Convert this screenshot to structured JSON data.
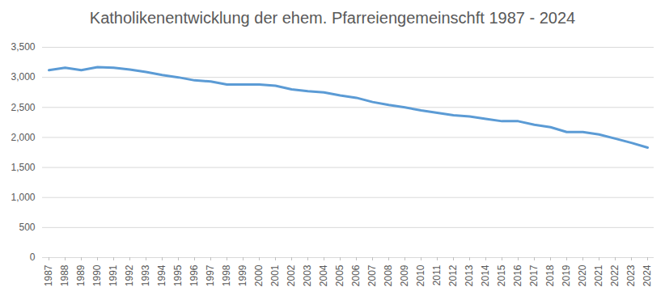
{
  "chart_data": {
    "type": "line",
    "title": "Katholikenentwicklung der ehem. Pfarreiengemeinschft 1987 - 2024",
    "categories": [
      "1987",
      "1988",
      "1989",
      "1990",
      "1991",
      "1992",
      "1993",
      "1994",
      "1995",
      "1996",
      "1997",
      "1998",
      "1999",
      "2000",
      "2001",
      "2002",
      "2003",
      "2004",
      "2005",
      "2006",
      "2007",
      "2008",
      "2009",
      "2010",
      "2011",
      "2012",
      "2013",
      "2014",
      "2015",
      "2016",
      "2017",
      "2018",
      "2019",
      "2020",
      "2021",
      "2022",
      "2023",
      "2024"
    ],
    "values": [
      3120,
      3160,
      3120,
      3170,
      3160,
      3130,
      3090,
      3040,
      3000,
      2950,
      2930,
      2880,
      2880,
      2880,
      2860,
      2800,
      2770,
      2750,
      2700,
      2660,
      2590,
      2540,
      2500,
      2450,
      2410,
      2370,
      2350,
      2310,
      2270,
      2270,
      2210,
      2170,
      2090,
      2090,
      2050,
      1980,
      1910,
      1830
    ],
    "color": "#5b9bd5",
    "ylim": [
      0,
      3500
    ],
    "yticks": [
      0,
      500,
      1000,
      1500,
      2000,
      2500,
      3000,
      3500
    ],
    "grid": true
  }
}
